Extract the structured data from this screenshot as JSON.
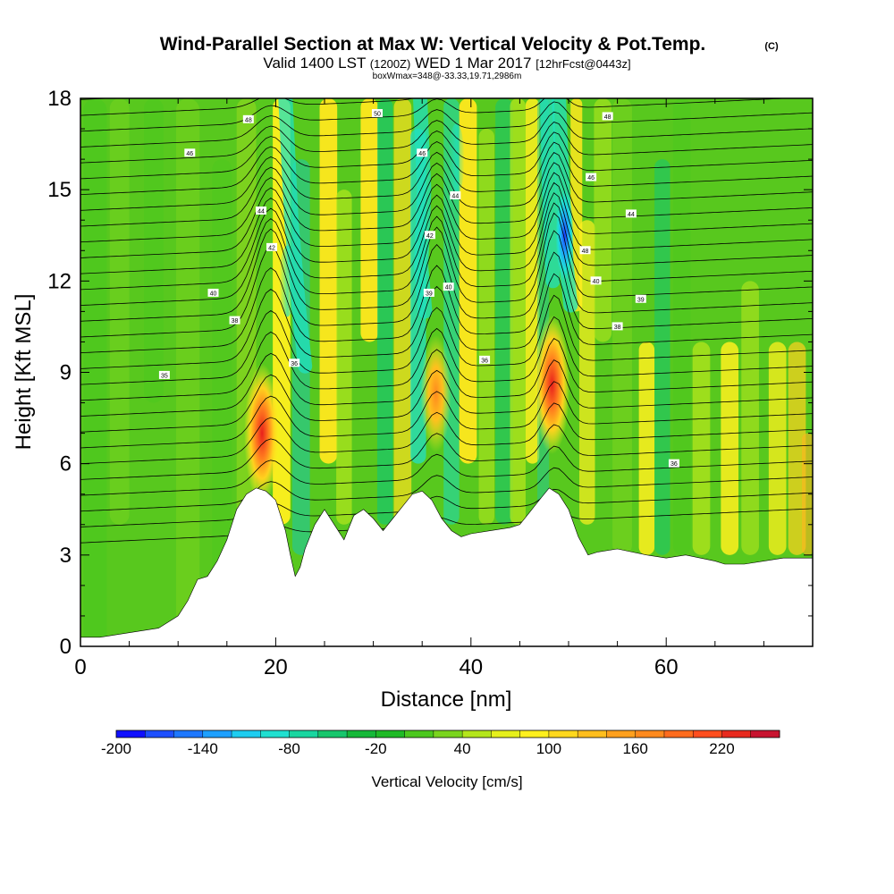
{
  "chart_data": {
    "type": "heatmap",
    "title": "Wind-Parallel Section at Max W: Vertical Velocity & Pot.Temp.",
    "copyright": "(C)",
    "subtitle_parts": [
      "Valid 1400 LST",
      "(1200Z)",
      "WED 1 Mar 2017",
      "[12hrFcst@0443z]"
    ],
    "subtitle2": "boxWmax=348@-33.33,19.71,2986m",
    "xlabel": "Distance [nm]",
    "ylabel": "Height [Kft MSL]",
    "xlim": [
      0,
      75
    ],
    "ylim": [
      0,
      18
    ],
    "xticks": [
      0,
      20,
      40,
      60
    ],
    "xtick_labels": [
      "0",
      "20",
      "40",
      "60"
    ],
    "yticks": [
      0,
      3,
      6,
      9,
      12,
      15,
      18
    ],
    "ytick_labels": [
      "0",
      "3",
      "6",
      "9",
      "12",
      "15",
      "18"
    ],
    "colorbar": {
      "label": "Vertical Velocity [cm/s]",
      "min": -200,
      "max": 250,
      "step": 20,
      "tick_values": [
        -200,
        -140,
        -80,
        -20,
        40,
        100,
        160,
        220
      ],
      "tick_labels": [
        "-200",
        "-140",
        "-80",
        "-20",
        "40",
        "100",
        "160",
        "220"
      ],
      "colors": [
        "#1010ff",
        "#1e50ff",
        "#1e78ff",
        "#1ea0ff",
        "#1ecdf0",
        "#20e0d0",
        "#19d6a0",
        "#17c66c",
        "#15b838",
        "#1fba26",
        "#4cc81e",
        "#7ad41e",
        "#b4e61c",
        "#e6f01c",
        "#fff01e",
        "#ffd81e",
        "#ffbe1e",
        "#ffa01e",
        "#ff8a1e",
        "#ff6c1e",
        "#ff4e1e",
        "#e82a1e",
        "#c81430"
      ]
    },
    "terrain_profile": {
      "x_nm": [
        0,
        2,
        8,
        10,
        11,
        12,
        13,
        14,
        15,
        16,
        17,
        18,
        19,
        20,
        21,
        21.5,
        22,
        22.5,
        23,
        24,
        25,
        26,
        27,
        28,
        29,
        30,
        31,
        32,
        33,
        34,
        35,
        36,
        37,
        38,
        39,
        40,
        42,
        44,
        45,
        46,
        47,
        48,
        49,
        50,
        51,
        52,
        53,
        55,
        58,
        60,
        62,
        65,
        66,
        68,
        70,
        72,
        75
      ],
      "kft": [
        0.3,
        0.3,
        0.6,
        1.0,
        1.5,
        2.2,
        2.3,
        2.8,
        3.5,
        4.5,
        5.0,
        5.2,
        5.1,
        4.8,
        3.8,
        3.0,
        2.3,
        2.6,
        3.2,
        4.0,
        4.5,
        4.0,
        3.5,
        4.3,
        4.5,
        4.2,
        3.8,
        4.2,
        4.6,
        5.0,
        5.1,
        4.8,
        4.2,
        3.8,
        3.6,
        3.7,
        3.8,
        3.9,
        4.0,
        4.4,
        4.8,
        5.2,
        5.0,
        4.5,
        3.6,
        3.0,
        3.1,
        3.2,
        3.0,
        2.9,
        3.0,
        2.8,
        2.7,
        2.7,
        2.8,
        2.9,
        2.9
      ]
    },
    "updraft_cores": [
      {
        "x_nm": 18.6,
        "y_kft": 7.0,
        "w_cms": 220
      },
      {
        "x_nm": 36.4,
        "y_kft": 8.3,
        "w_cms": 150
      },
      {
        "x_nm": 48.3,
        "y_kft": 8.6,
        "w_cms": 240
      }
    ],
    "downdraft_cores": [
      {
        "x_nm": 49.6,
        "y_kft": 13.5,
        "w_cms": -200
      },
      {
        "x_nm": 21.2,
        "y_kft": 12.0,
        "w_cms": -60
      },
      {
        "x_nm": 38.5,
        "y_kft": 16.0,
        "w_cms": -60
      }
    ],
    "theta_contour_labels": [
      {
        "x_nm": 17.2,
        "y_kft": 17.3,
        "text": "48"
      },
      {
        "x_nm": 11.2,
        "y_kft": 16.2,
        "text": "46"
      },
      {
        "x_nm": 18.5,
        "y_kft": 14.3,
        "text": "44"
      },
      {
        "x_nm": 19.6,
        "y_kft": 13.1,
        "text": "42"
      },
      {
        "x_nm": 13.6,
        "y_kft": 11.6,
        "text": "40"
      },
      {
        "x_nm": 15.8,
        "y_kft": 10.7,
        "text": "38"
      },
      {
        "x_nm": 8.6,
        "y_kft": 8.9,
        "text": "35"
      },
      {
        "x_nm": 21.9,
        "y_kft": 9.3,
        "text": "36"
      },
      {
        "x_nm": 30.4,
        "y_kft": 17.5,
        "text": "50"
      },
      {
        "x_nm": 35.0,
        "y_kft": 16.2,
        "text": "46"
      },
      {
        "x_nm": 38.4,
        "y_kft": 14.8,
        "text": "44"
      },
      {
        "x_nm": 35.8,
        "y_kft": 13.5,
        "text": "42"
      },
      {
        "x_nm": 37.7,
        "y_kft": 11.8,
        "text": "40"
      },
      {
        "x_nm": 35.7,
        "y_kft": 11.6,
        "text": "39"
      },
      {
        "x_nm": 41.4,
        "y_kft": 9.4,
        "text": "36"
      },
      {
        "x_nm": 54.0,
        "y_kft": 17.4,
        "text": "48"
      },
      {
        "x_nm": 52.3,
        "y_kft": 15.4,
        "text": "46"
      },
      {
        "x_nm": 56.4,
        "y_kft": 14.2,
        "text": "44"
      },
      {
        "x_nm": 51.7,
        "y_kft": 13.0,
        "text": "48"
      },
      {
        "x_nm": 52.8,
        "y_kft": 12.0,
        "text": "40"
      },
      {
        "x_nm": 57.4,
        "y_kft": 11.4,
        "text": "39"
      },
      {
        "x_nm": 55.0,
        "y_kft": 10.5,
        "text": "38"
      },
      {
        "x_nm": 60.8,
        "y_kft": 6.0,
        "text": "36"
      }
    ]
  }
}
